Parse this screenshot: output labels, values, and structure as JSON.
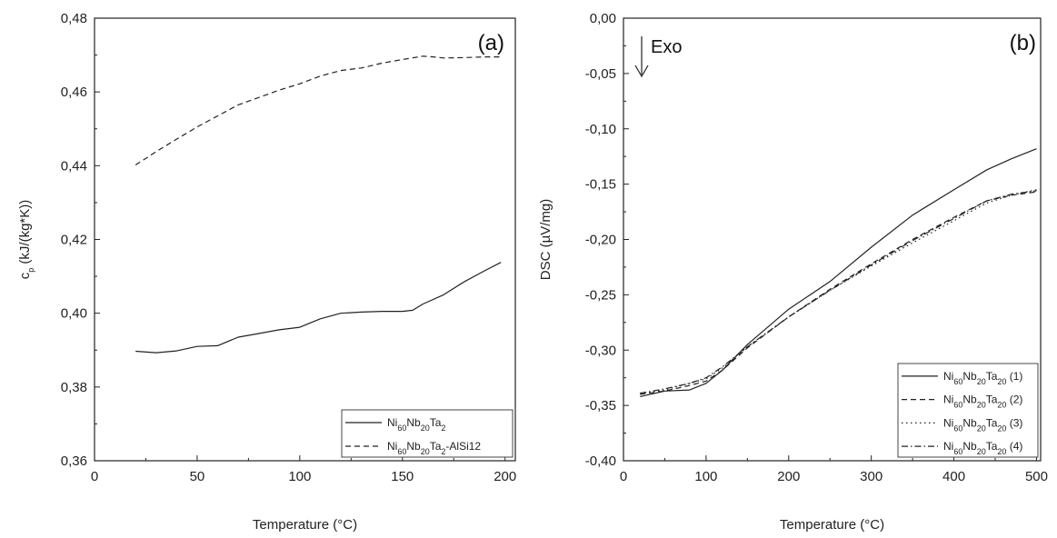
{
  "chart_data": [
    {
      "type": "line",
      "panel_label": "(a)",
      "xlabel": "Temperature (°C)",
      "ylabel": "c_p (kJ/(kg*K))",
      "ylabel_main": "c",
      "ylabel_sub": "p",
      "ylabel_rest": " (kJ/(kg*K))",
      "xlim": [
        0,
        205
      ],
      "ylim": [
        0.36,
        0.48
      ],
      "xticks": [
        0,
        50,
        100,
        150,
        200
      ],
      "xtick_labels": [
        "0",
        "50",
        "100",
        "150",
        "200"
      ],
      "yticks": [
        0.36,
        0.38,
        0.4,
        0.42,
        0.44,
        0.46,
        0.48
      ],
      "ytick_labels": [
        "0,36",
        "0,38",
        "0,40",
        "0,42",
        "0,44",
        "0,46",
        "0,48"
      ],
      "grid": false,
      "legend_position": "bottom-right",
      "series": [
        {
          "name": "Ni60Nb20Ta2",
          "name_parts": [
            "Ni",
            "60",
            "Nb",
            "20",
            "Ta",
            "2",
            ""
          ],
          "dash": "solid",
          "x": [
            20,
            30,
            40,
            50,
            60,
            70,
            80,
            90,
            100,
            110,
            120,
            130,
            140,
            150,
            155,
            160,
            170,
            180,
            190,
            198
          ],
          "y": [
            0.3897,
            0.3893,
            0.3898,
            0.391,
            0.3912,
            0.3935,
            0.3945,
            0.3955,
            0.3962,
            0.3985,
            0.4,
            0.4003,
            0.4005,
            0.4005,
            0.4008,
            0.4025,
            0.405,
            0.4085,
            0.4115,
            0.4138
          ]
        },
        {
          "name": "Ni60Nb20Ta2-AlSi12",
          "name_parts": [
            "Ni",
            "60",
            "Nb",
            "20",
            "Ta",
            "2",
            "-AlSi12"
          ],
          "dash": "dashed",
          "x": [
            20,
            30,
            40,
            50,
            60,
            70,
            80,
            90,
            100,
            110,
            120,
            130,
            140,
            150,
            160,
            165,
            170,
            180,
            190,
            198
          ],
          "y": [
            0.4402,
            0.4438,
            0.4472,
            0.4505,
            0.4535,
            0.4565,
            0.4585,
            0.4605,
            0.4622,
            0.4643,
            0.4658,
            0.4665,
            0.4678,
            0.4688,
            0.4697,
            0.4695,
            0.4692,
            0.4693,
            0.4695,
            0.4695
          ]
        }
      ]
    },
    {
      "type": "line",
      "panel_label": "(b)",
      "annotation": "Exo",
      "xlabel": "Temperature (°C)",
      "ylabel": "DSC (µV/mg)",
      "xlim": [
        0,
        505
      ],
      "ylim": [
        -0.4,
        0.0
      ],
      "xticks": [
        0,
        100,
        200,
        300,
        400,
        500
      ],
      "xtick_labels": [
        "0",
        "100",
        "200",
        "300",
        "400",
        "500"
      ],
      "yticks": [
        -0.4,
        -0.35,
        -0.3,
        -0.25,
        -0.2,
        -0.15,
        -0.1,
        -0.05,
        0.0
      ],
      "ytick_labels": [
        "-0,40",
        "-0,35",
        "-0,30",
        "-0,25",
        "-0,20",
        "-0,15",
        "-0,10",
        "-0,05",
        "0,00"
      ],
      "grid": false,
      "legend_position": "bottom-right",
      "series": [
        {
          "name": "Ni60Nb20Ta20 (1)",
          "name_parts": [
            "Ni",
            "60",
            "Nb",
            "20",
            "Ta",
            "20",
            " (1)"
          ],
          "dash": "solid",
          "x": [
            20,
            50,
            80,
            100,
            120,
            150,
            200,
            250,
            300,
            350,
            400,
            440,
            470,
            500
          ],
          "y": [
            -0.342,
            -0.337,
            -0.336,
            -0.33,
            -0.318,
            -0.295,
            -0.263,
            -0.238,
            -0.207,
            -0.178,
            -0.155,
            -0.137,
            -0.127,
            -0.118
          ]
        },
        {
          "name": "Ni60Nb20Ta20 (2)",
          "name_parts": [
            "Ni",
            "60",
            "Nb",
            "20",
            "Ta",
            "20",
            " (2)"
          ],
          "dash": "dashed",
          "x": [
            20,
            50,
            80,
            100,
            120,
            150,
            200,
            250,
            300,
            350,
            400,
            440,
            470,
            500
          ],
          "y": [
            -0.34,
            -0.337,
            -0.332,
            -0.328,
            -0.318,
            -0.298,
            -0.27,
            -0.245,
            -0.222,
            -0.2,
            -0.18,
            -0.165,
            -0.16,
            -0.157
          ]
        },
        {
          "name": "Ni60Nb20Ta20 (3)",
          "name_parts": [
            "Ni",
            "60",
            "Nb",
            "20",
            "Ta",
            "20",
            " (3)"
          ],
          "dash": "dotted",
          "x": [
            20,
            50,
            80,
            100,
            120,
            150,
            200,
            250,
            300,
            350,
            400,
            440,
            470,
            500
          ],
          "y": [
            -0.339,
            -0.336,
            -0.33,
            -0.326,
            -0.316,
            -0.297,
            -0.27,
            -0.246,
            -0.224,
            -0.203,
            -0.183,
            -0.167,
            -0.16,
            -0.155
          ]
        },
        {
          "name": "Ni60Nb20Ta20 (4)",
          "name_parts": [
            "Ni",
            "60",
            "Nb",
            "20",
            "Ta",
            "20",
            " (4)"
          ],
          "dash": "dashdot",
          "x": [
            20,
            50,
            80,
            100,
            120,
            150,
            200,
            250,
            300,
            350,
            400,
            440,
            470,
            500
          ],
          "y": [
            -0.339,
            -0.335,
            -0.33,
            -0.325,
            -0.315,
            -0.297,
            -0.27,
            -0.246,
            -0.223,
            -0.201,
            -0.181,
            -0.165,
            -0.159,
            -0.156
          ]
        }
      ]
    }
  ]
}
